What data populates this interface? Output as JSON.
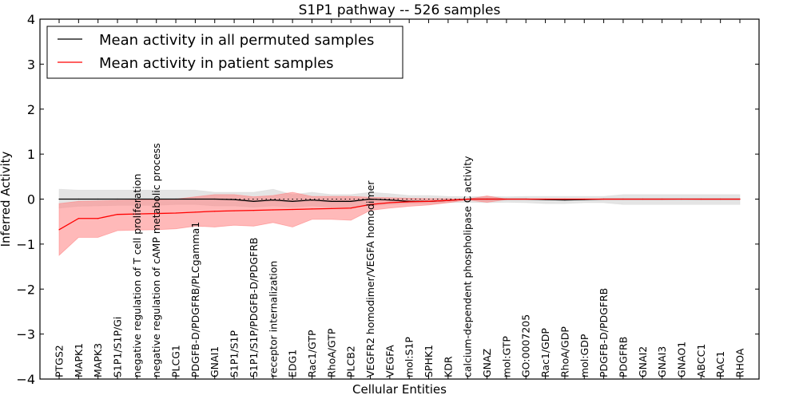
{
  "chart_data": {
    "type": "line",
    "title": "S1P1 pathway -- 526 samples",
    "xlabel": "Cellular Entities",
    "ylabel": "Inferred Activity",
    "ylim": [
      -4,
      4
    ],
    "yticks": [
      -4,
      -3,
      -2,
      -1,
      0,
      1,
      2,
      3,
      4
    ],
    "ytick_labels": [
      "−4",
      "−3",
      "−2",
      "−1",
      "0",
      "1",
      "2",
      "3",
      "4"
    ],
    "grid": false,
    "legend": {
      "placement": "top-left",
      "entries": [
        {
          "label": "Mean activity in all permuted samples",
          "color": "#000000"
        },
        {
          "label": "Mean activity in patient samples",
          "color": "#ff0000"
        }
      ]
    },
    "categories": [
      "PTGS2",
      "MAPK1",
      "MAPK3",
      "S1P1/S1P/Gi",
      "negative regulation of T cell proliferation",
      "negative regulation of cAMP metabolic process",
      "PLCG1",
      "PDGFB-D/PDGFRB/PLCgamma1",
      "GNAI1",
      "S1P1/S1P",
      "S1P1/S1P/PDGFB-D/PDGFRB",
      "receptor internalization",
      "EDG1",
      "Rac1/GTP",
      "RhoA/GTP",
      "PLCB2",
      "VEGFR2 homodimer/VEGFA homodimer",
      "VEGFA",
      "mol:S1P",
      "SPHK1",
      "KDR",
      "calcium-dependent phospholipase C activity",
      "GNAZ",
      "mol:GTP",
      "GO:0007205",
      "Rac1/GDP",
      "RhoA/GDP",
      "mol:GDP",
      "PDGFB-D/PDGFRB",
      "PDGFRB",
      "GNAI2",
      "GNAI3",
      "GNAO1",
      "ABCC1",
      "RAC1",
      "RHOA"
    ],
    "series": [
      {
        "name": "Mean activity in all permuted samples",
        "color": "#000000",
        "band_color": "#d9d9d9",
        "values": [
          0.0,
          0.0,
          0.0,
          0.0,
          0.0,
          0.0,
          0.0,
          0.0,
          0.0,
          -0.01,
          -0.05,
          -0.02,
          -0.05,
          -0.02,
          -0.05,
          -0.05,
          0.0,
          -0.02,
          -0.05,
          -0.05,
          -0.03,
          0.0,
          0.0,
          0.0,
          0.0,
          -0.01,
          -0.02,
          -0.01,
          0.0,
          0.0,
          0.0,
          0.0,
          0.0,
          0.0,
          0.0,
          0.0
        ],
        "band_upper": [
          0.22,
          0.2,
          0.2,
          0.2,
          0.2,
          0.2,
          0.2,
          0.2,
          0.15,
          0.15,
          0.15,
          0.22,
          0.1,
          0.15,
          0.1,
          0.1,
          0.15,
          0.12,
          0.08,
          0.08,
          0.06,
          0.05,
          0.06,
          0.05,
          0.06,
          0.06,
          0.06,
          0.06,
          0.06,
          0.1,
          0.1,
          0.1,
          0.1,
          0.1,
          0.1,
          0.1
        ],
        "band_lower": [
          -0.2,
          -0.16,
          -0.15,
          -0.14,
          -0.14,
          -0.14,
          -0.12,
          -0.12,
          -0.15,
          -0.15,
          -0.18,
          -0.15,
          -0.18,
          -0.15,
          -0.18,
          -0.18,
          -0.15,
          -0.12,
          -0.1,
          -0.1,
          -0.08,
          -0.07,
          -0.08,
          -0.07,
          -0.08,
          -0.1,
          -0.1,
          -0.08,
          -0.08,
          -0.12,
          -0.12,
          -0.12,
          -0.12,
          -0.12,
          -0.12,
          -0.12
        ]
      },
      {
        "name": "Mean activity in patient samples",
        "color": "#ff0000",
        "band_color": "#ff8080",
        "values": [
          -0.68,
          -0.43,
          -0.43,
          -0.34,
          -0.33,
          -0.32,
          -0.31,
          -0.29,
          -0.27,
          -0.26,
          -0.25,
          -0.24,
          -0.23,
          -0.22,
          -0.21,
          -0.2,
          -0.12,
          -0.08,
          -0.06,
          -0.05,
          -0.03,
          0.0,
          0.0,
          0.0,
          0.0,
          0.0,
          0.0,
          0.0,
          0.0,
          0.0,
          0.0,
          0.0,
          0.0,
          0.0,
          0.0,
          0.0
        ],
        "band_upper": [
          -0.1,
          -0.05,
          -0.04,
          -0.03,
          -0.02,
          -0.01,
          0.0,
          0.05,
          0.1,
          0.1,
          0.05,
          0.08,
          0.15,
          0.06,
          0.06,
          0.06,
          0.04,
          0.03,
          0.02,
          0.01,
          0.01,
          0.0,
          0.07,
          0.0,
          0.0,
          0.0,
          0.0,
          0.0,
          0.0,
          0.0,
          0.0,
          0.0,
          0.0,
          0.0,
          0.0,
          0.0
        ],
        "band_lower": [
          -1.25,
          -0.85,
          -0.85,
          -0.7,
          -0.69,
          -0.68,
          -0.66,
          -0.6,
          -0.62,
          -0.58,
          -0.6,
          -0.52,
          -0.62,
          -0.45,
          -0.45,
          -0.47,
          -0.25,
          -0.2,
          -0.16,
          -0.13,
          -0.08,
          -0.02,
          -0.07,
          -0.01,
          -0.01,
          -0.01,
          -0.01,
          -0.01,
          -0.01,
          -0.01,
          -0.01,
          -0.01,
          0.0,
          -0.01,
          -0.01,
          -0.01
        ]
      }
    ]
  }
}
